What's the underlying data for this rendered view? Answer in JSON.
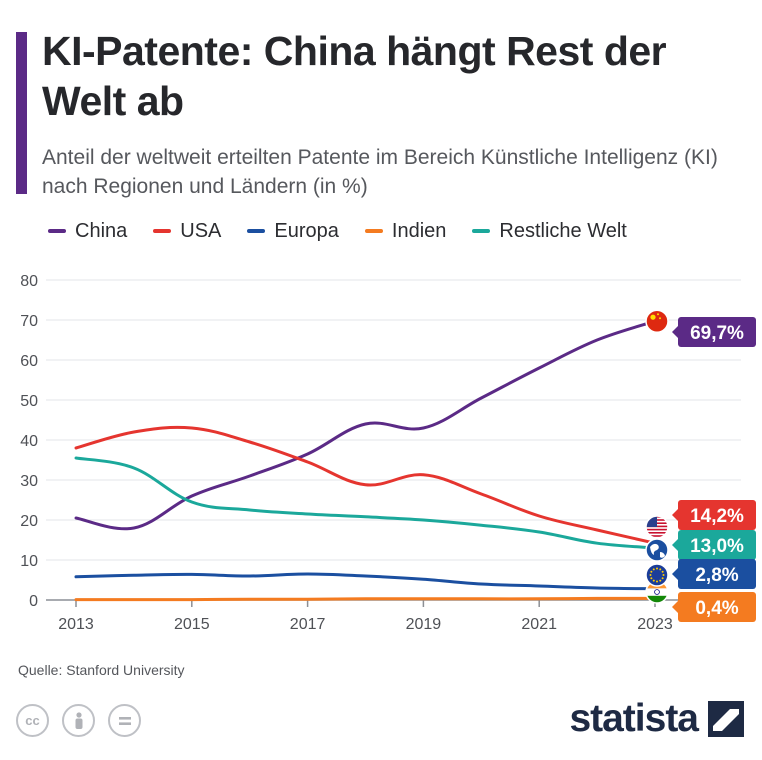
{
  "header": {
    "title": "KI-Patente: China hängt Rest der Welt ab",
    "subtitle": "Anteil der weltweit erteilten Patente im Bereich Künstliche Intelligenz (KI) nach Regionen und Ländern (in %)"
  },
  "footer": {
    "source": "Quelle: Stanford University",
    "license_icons": [
      "cc-icon",
      "attribution-icon",
      "no-derivatives-icon"
    ],
    "brand": "statista"
  },
  "chart_data": {
    "type": "line",
    "title": "KI-Patente: China hängt Rest der Welt ab",
    "subtitle": "Anteil der weltweit erteilten Patente im Bereich Künstliche Intelligenz (KI) nach Regionen und Ländern (in %)",
    "xlabel": "",
    "ylabel": "",
    "x": [
      2013,
      2014,
      2015,
      2016,
      2017,
      2018,
      2019,
      2020,
      2021,
      2022,
      2023
    ],
    "x_tick_labels": [
      "2013",
      "2015",
      "2017",
      "2019",
      "2021",
      "2023"
    ],
    "y_ticks": [
      0,
      10,
      20,
      30,
      40,
      50,
      60,
      70,
      80
    ],
    "ylim": [
      0,
      80
    ],
    "grid": true,
    "legend_position": "top-left",
    "series": [
      {
        "name": "China",
        "color": "#5b2a86",
        "flag_icon": "china-flag-icon",
        "end_label": "69,7%",
        "values": [
          20.5,
          18.0,
          26.0,
          31.0,
          36.5,
          44.0,
          43.0,
          50.5,
          58.0,
          65.0,
          69.7
        ]
      },
      {
        "name": "USA",
        "color": "#e5352f",
        "flag_icon": "usa-flag-icon",
        "end_label": "14,2%",
        "values": [
          38.0,
          42.0,
          43.0,
          39.5,
          34.5,
          28.8,
          31.3,
          26.5,
          21.0,
          17.5,
          14.2
        ]
      },
      {
        "name": "Europa",
        "color": "#1b4fa0",
        "flag_icon": "eu-flag-icon",
        "end_label": "2,8%",
        "values": [
          5.8,
          6.2,
          6.4,
          6.0,
          6.5,
          6.0,
          5.2,
          4.0,
          3.5,
          3.0,
          2.8
        ]
      },
      {
        "name": "Indien",
        "color": "#f47b20",
        "flag_icon": "india-flag-icon",
        "end_label": "0,4%",
        "values": [
          0.1,
          0.1,
          0.1,
          0.2,
          0.2,
          0.3,
          0.3,
          0.3,
          0.3,
          0.4,
          0.4
        ]
      },
      {
        "name": "Restliche Welt",
        "color": "#1ba89b",
        "flag_icon": "globe-icon",
        "end_label": "13,0%",
        "values": [
          35.5,
          33.0,
          24.5,
          22.5,
          21.5,
          20.8,
          20.0,
          18.7,
          17.0,
          14.2,
          13.0
        ]
      }
    ]
  }
}
